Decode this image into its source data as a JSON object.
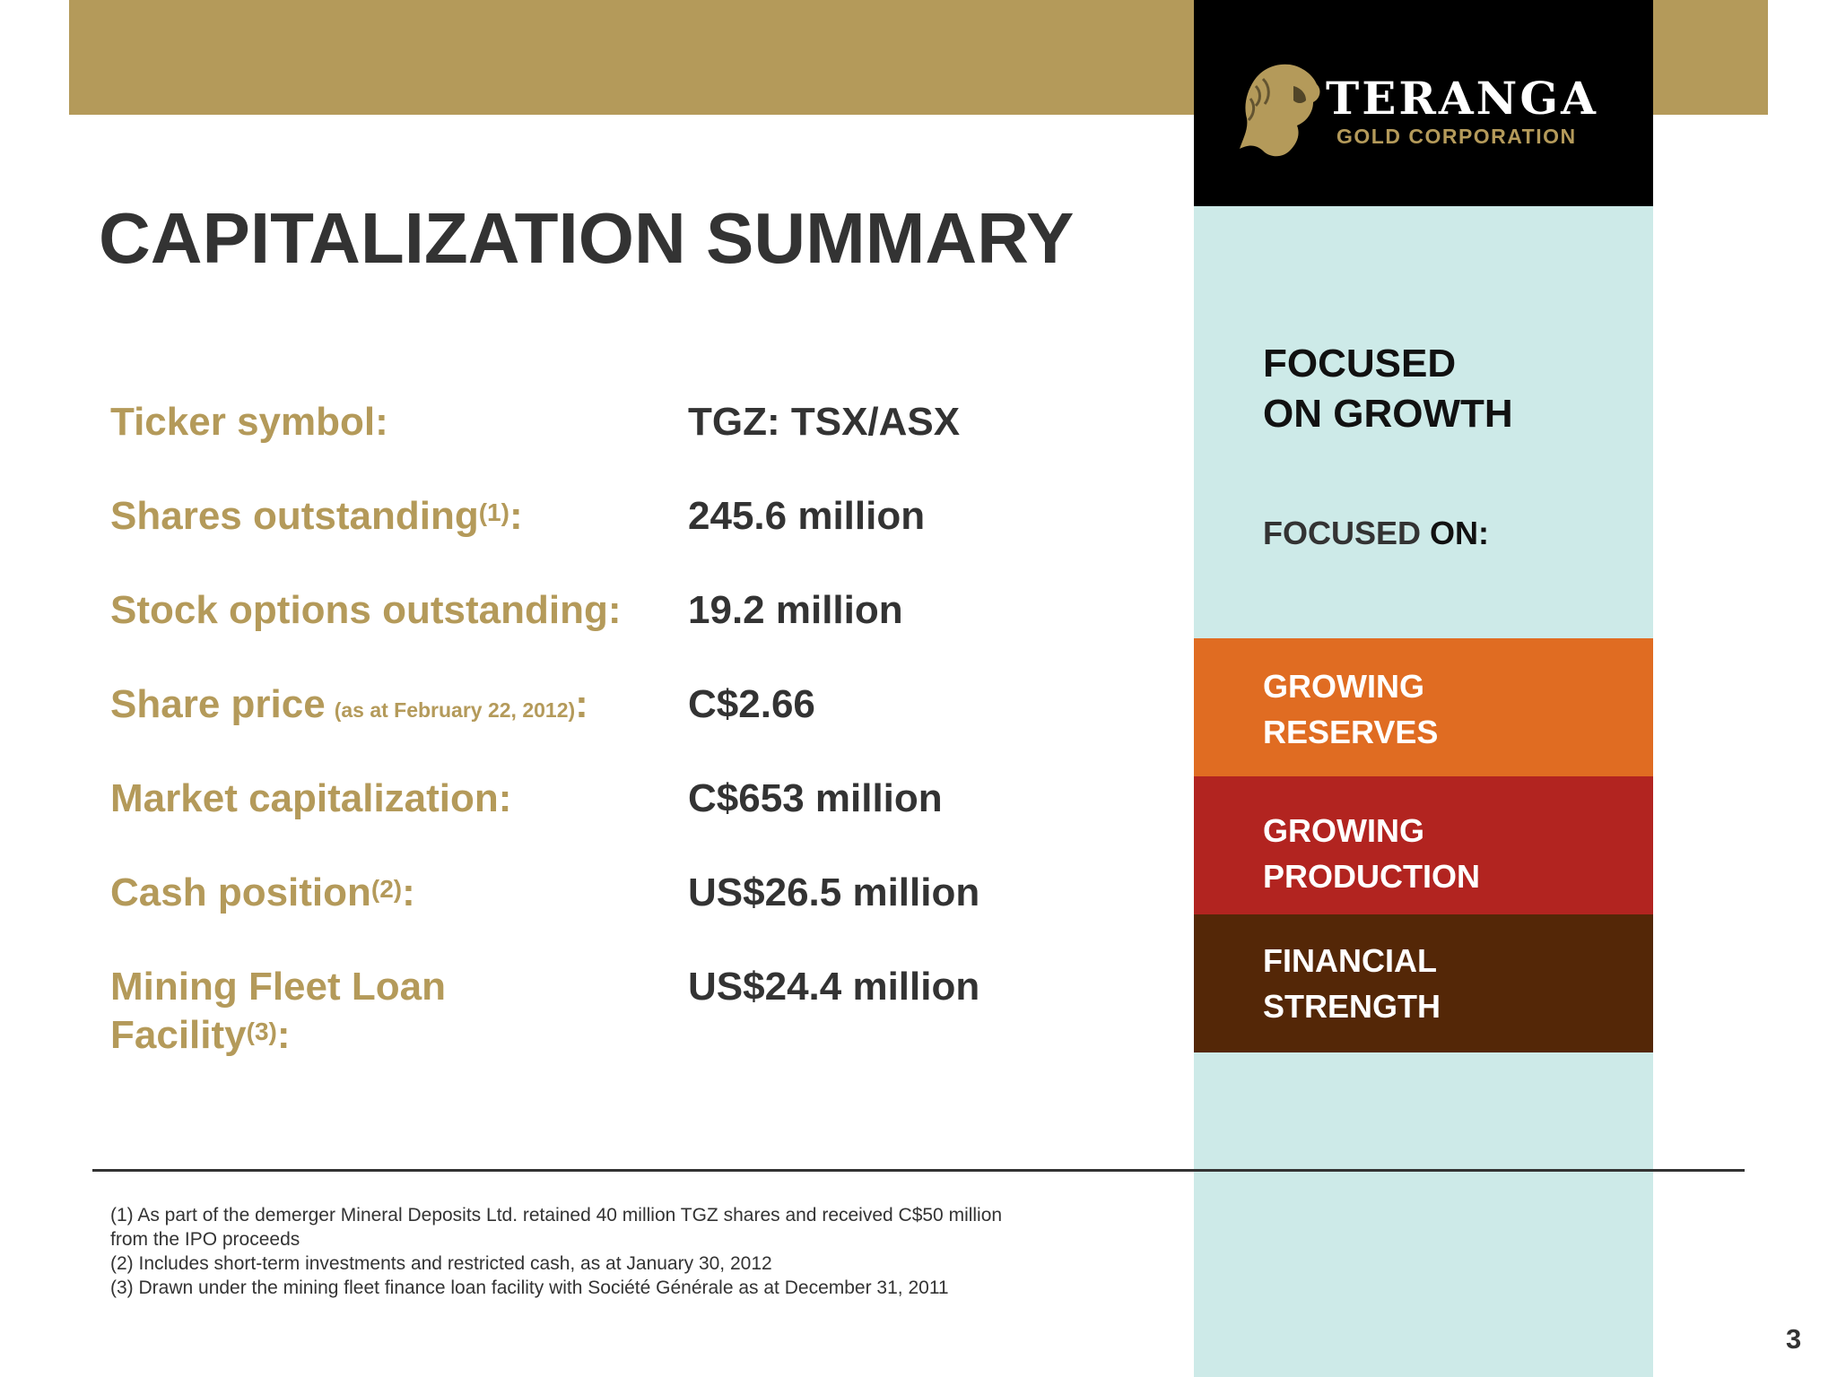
{
  "logo": {
    "name": "TERANGA",
    "subtitle": "GOLD CORPORATION",
    "colors": {
      "gold": "#b49a5a",
      "background": "#000000"
    }
  },
  "title": "CAPITALIZATION SUMMARY",
  "summary": [
    {
      "label": "Ticker symbol:",
      "value": "TGZ: TSX/ASX"
    },
    {
      "label": "Shares outstanding",
      "sup": "(1)",
      "suffix": ":",
      "value": "245.6 million"
    },
    {
      "label": "Stock options outstanding:",
      "value": "19.2 million"
    },
    {
      "label": "Share price",
      "note": "(as at February 22, 2012)",
      "suffix": ":",
      "value": "C$2.66"
    },
    {
      "label": "Market capitalization:",
      "value": "C$653  million"
    },
    {
      "label": "Cash position",
      "sup": "(2)",
      "suffix": ":",
      "value": "US$26.5 million"
    },
    {
      "label_line1": "Mining Fleet Loan",
      "label_line2": "Facility",
      "sup": "(3)",
      "suffix": ":",
      "value": "US$24.4 million"
    }
  ],
  "sidebar": {
    "heading_line1": "FOCUSED",
    "heading_line2": "ON GROWTH",
    "focused_on_a": "FOCUSED ",
    "focused_on_b": "ON:",
    "bands": [
      {
        "line1": "GROWING",
        "line2": "RESERVES",
        "color": "#e06c22"
      },
      {
        "line1": "GROWING",
        "line2": "PRODUCTION",
        "color": "#b22420"
      },
      {
        "line1": "FINANCIAL",
        "line2": "STRENGTH",
        "color": "#542707"
      }
    ],
    "column_color": "#cdeae8",
    "top_band_color": "#b49a5a"
  },
  "footnotes": [
    "(1) As part of the demerger Mineral Deposits Ltd. retained 40 million TGZ shares and received C$50 million",
    "from the IPO proceeds",
    "(2) Includes short-term investments and restricted cash, as at January 30, 2012",
    "(3) Drawn under the mining fleet finance loan facility with Société Générale as at December 31, 2011"
  ],
  "page_number": "3"
}
